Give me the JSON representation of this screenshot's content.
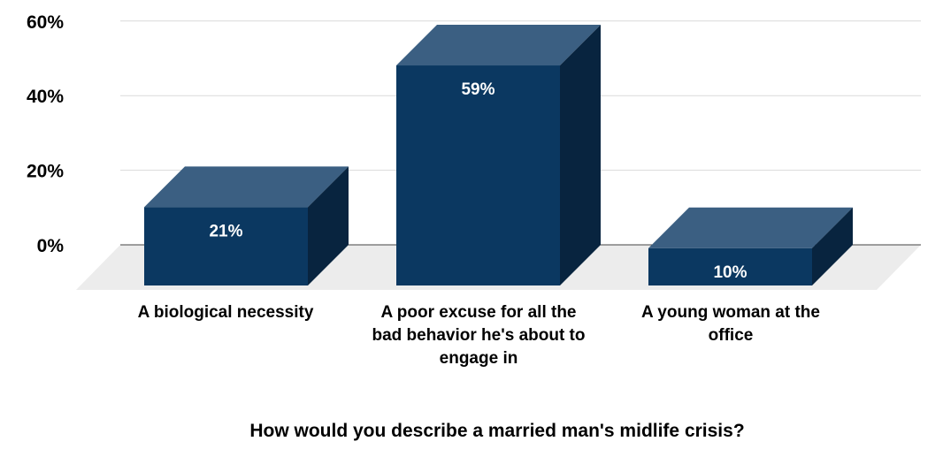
{
  "chart_data": {
    "type": "bar",
    "title": "",
    "xlabel": "How would you describe a married man's midlife crisis?",
    "ylabel": "",
    "ylim": [
      0,
      60
    ],
    "yticks": [
      0,
      20,
      40,
      60
    ],
    "ytick_labels": [
      "0%",
      "20%",
      "40%",
      "60%"
    ],
    "categories": [
      [
        "A biological necessity"
      ],
      [
        "A poor excuse for all the",
        "bad behavior he's about to",
        "engage in"
      ],
      [
        "A young woman at the",
        "office"
      ]
    ],
    "values": [
      21,
      59,
      10
    ],
    "value_labels": [
      "21%",
      "59%",
      "10%"
    ],
    "grid": true,
    "legend": "none",
    "colors": {
      "bar_front": "#0b3861",
      "bar_top": "#3b5f82",
      "bar_side": "#08243f",
      "floor": "#ececec",
      "gridline": "#d9d9d9"
    }
  }
}
